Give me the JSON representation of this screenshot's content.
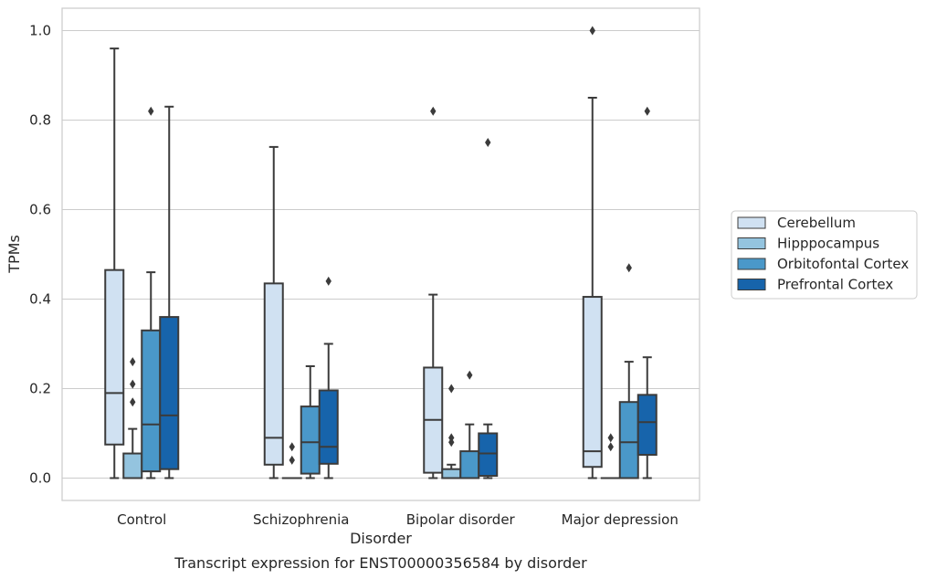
{
  "chart_data": {
    "type": "box",
    "xlabel": "Disorder",
    "ylabel": "TPMs",
    "caption": "Transcript expression for ENST00000356584 by disorder",
    "categories": [
      "Control",
      "Schizophrenia",
      "Bipolar disorder",
      "Major depression"
    ],
    "ylim": [
      -0.05,
      1.05
    ],
    "yticks": [
      "0.0",
      "0.2",
      "0.4",
      "0.6",
      "0.8",
      "1.0"
    ],
    "ytick_values": [
      0,
      0.2,
      0.4,
      0.6,
      0.8,
      1.0
    ],
    "grid": true,
    "legend_position": "right",
    "series": [
      {
        "name": "Cerebellum",
        "color": "#d0e1f2",
        "boxes": [
          {
            "whislo": 0.0,
            "q1": 0.075,
            "med": 0.19,
            "q3": 0.465,
            "whishi": 0.96,
            "fliers": []
          },
          {
            "whislo": 0.0,
            "q1": 0.03,
            "med": 0.09,
            "q3": 0.435,
            "whishi": 0.74,
            "fliers": []
          },
          {
            "whislo": 0.0,
            "q1": 0.012,
            "med": 0.13,
            "q3": 0.247,
            "whishi": 0.41,
            "fliers": [
              0.82
            ]
          },
          {
            "whislo": 0.0,
            "q1": 0.025,
            "med": 0.06,
            "q3": 0.405,
            "whishi": 0.85,
            "fliers": [
              1.0
            ]
          }
        ]
      },
      {
        "name": "Hipppocampus",
        "color": "#94c4df",
        "boxes": [
          {
            "whislo": 0.0,
            "q1": 0.0,
            "med": 0.0,
            "q3": 0.055,
            "whishi": 0.11,
            "fliers": [
              0.17,
              0.21,
              0.26
            ]
          },
          {
            "whislo": 0.0,
            "q1": 0.0,
            "med": 0.0,
            "q3": 0.0,
            "whishi": 0.0,
            "fliers": [
              0.04,
              0.07
            ]
          },
          {
            "whislo": 0.0,
            "q1": 0.0,
            "med": 0.0,
            "q3": 0.02,
            "whishi": 0.03,
            "fliers": [
              0.08,
              0.09,
              0.2
            ]
          },
          {
            "whislo": 0.0,
            "q1": 0.0,
            "med": 0.0,
            "q3": 0.0,
            "whishi": 0.0,
            "fliers": [
              0.07,
              0.09
            ]
          }
        ]
      },
      {
        "name": "Orbitofontal Cortex",
        "color": "#4a98c9",
        "boxes": [
          {
            "whislo": 0.0,
            "q1": 0.015,
            "med": 0.12,
            "q3": 0.33,
            "whishi": 0.46,
            "fliers": [
              0.82
            ]
          },
          {
            "whislo": 0.0,
            "q1": 0.01,
            "med": 0.08,
            "q3": 0.16,
            "whishi": 0.25,
            "fliers": []
          },
          {
            "whislo": 0.0,
            "q1": 0.0,
            "med": 0.0,
            "q3": 0.06,
            "whishi": 0.12,
            "fliers": [
              0.23
            ]
          },
          {
            "whislo": 0.0,
            "q1": 0.0,
            "med": 0.08,
            "q3": 0.17,
            "whishi": 0.26,
            "fliers": [
              0.47
            ]
          }
        ]
      },
      {
        "name": "Prefrontal Cortex",
        "color": "#1764ab",
        "boxes": [
          {
            "whislo": 0.0,
            "q1": 0.02,
            "med": 0.14,
            "q3": 0.36,
            "whishi": 0.83,
            "fliers": []
          },
          {
            "whislo": 0.0,
            "q1": 0.032,
            "med": 0.07,
            "q3": 0.196,
            "whishi": 0.3,
            "fliers": [
              0.44
            ]
          },
          {
            "whislo": 0.0,
            "q1": 0.005,
            "med": 0.055,
            "q3": 0.1,
            "whishi": 0.12,
            "fliers": [
              0.75
            ]
          },
          {
            "whislo": 0.0,
            "q1": 0.052,
            "med": 0.125,
            "q3": 0.186,
            "whishi": 0.27,
            "fliers": [
              0.82
            ]
          }
        ]
      }
    ]
  }
}
